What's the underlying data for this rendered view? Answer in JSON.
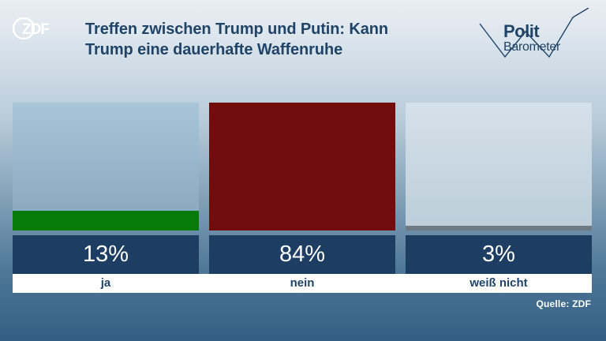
{
  "header": {
    "logo": "ZDF",
    "title_line1": "Treffen zwischen Trump und Putin: Kann",
    "title_line2": "Trump eine dauerhafte Waffenruhe",
    "brand_line1": "Polit",
    "brand_line2": "Barometer"
  },
  "chart_data": {
    "type": "bar",
    "title": "Treffen zwischen Trump und Putin: Kann Trump eine dauerhafte Waffenruhe",
    "categories": [
      "ja",
      "nein",
      "weiß nicht"
    ],
    "values": [
      13,
      84,
      3
    ],
    "value_labels": [
      "13%",
      "84%",
      "3%"
    ],
    "unit": "%",
    "ylim": [
      0,
      84
    ],
    "colors": [
      "#077a07",
      "#730c0c",
      "#6f7a84"
    ],
    "grid": false
  },
  "source": "Quelle: ZDF"
}
